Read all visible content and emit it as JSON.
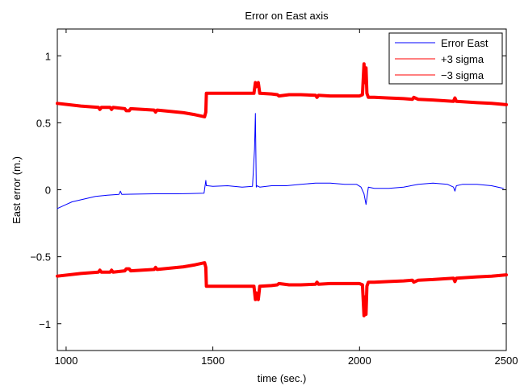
{
  "chart_data": {
    "type": "line",
    "title": "Error on East axis",
    "xlabel": "time (sec.)",
    "ylabel": "East error (m.)",
    "xlim": [
      970,
      2500
    ],
    "ylim": [
      -1.2,
      1.2
    ],
    "xticks": [
      1000,
      1500,
      2000,
      2500
    ],
    "xtick_labels": [
      "1000",
      "1500",
      "2000",
      "2500"
    ],
    "yticks": [
      -1,
      -0.5,
      0,
      0.5,
      1
    ],
    "ytick_labels": [
      "−1",
      "−0.5",
      "0",
      "0.5",
      "1"
    ],
    "grid": false,
    "legend_position": "top-right",
    "series": [
      {
        "name": "Error East",
        "color": "#0000ff",
        "x": [
          970,
          990,
          1020,
          1060,
          1100,
          1140,
          1180,
          1185,
          1190,
          1220,
          1260,
          1300,
          1340,
          1380,
          1420,
          1470,
          1476,
          1478,
          1482,
          1500,
          1550,
          1600,
          1635,
          1642,
          1645,
          1648,
          1650,
          1660,
          1700,
          1750,
          1800,
          1850,
          1900,
          1950,
          1990,
          2005,
          2015,
          2022,
          2030,
          2050,
          2100,
          2150,
          2200,
          2250,
          2300,
          2320,
          2325,
          2330,
          2350,
          2400,
          2450,
          2490
        ],
        "y": [
          -0.14,
          -0.12,
          -0.09,
          -0.07,
          -0.05,
          -0.04,
          -0.035,
          -0.01,
          -0.035,
          -0.033,
          -0.032,
          -0.03,
          -0.03,
          -0.03,
          -0.028,
          -0.025,
          0.07,
          0.03,
          0.03,
          0.025,
          0.03,
          0.02,
          0.025,
          0.3,
          0.57,
          0.02,
          0.03,
          0.02,
          0.03,
          0.03,
          0.04,
          0.05,
          0.05,
          0.04,
          0.04,
          0.02,
          -0.03,
          -0.11,
          0.02,
          0.01,
          0.01,
          0.02,
          0.04,
          0.05,
          0.04,
          0.02,
          -0.01,
          0.03,
          0.04,
          0.04,
          0.03,
          0.01
        ]
      },
      {
        "name": "+3 sigma",
        "color": "#ff0000",
        "x": [
          970,
          1050,
          1110,
          1115,
          1120,
          1150,
          1155,
          1160,
          1200,
          1205,
          1215,
          1220,
          1300,
          1305,
          1310,
          1400,
          1440,
          1472,
          1476,
          1478,
          1520,
          1550,
          1600,
          1640,
          1645,
          1648,
          1655,
          1660,
          1700,
          1720,
          1725,
          1760,
          1800,
          1850,
          1855,
          1860,
          1900,
          1950,
          2000,
          2010,
          2015,
          2018,
          2022,
          2025,
          2030,
          2050,
          2100,
          2150,
          2180,
          2185,
          2200,
          2250,
          2320,
          2325,
          2330,
          2400,
          2450,
          2500
        ],
        "y": [
          0.645,
          0.625,
          0.615,
          0.6,
          0.615,
          0.615,
          0.6,
          0.615,
          0.605,
          0.59,
          0.59,
          0.605,
          0.595,
          0.58,
          0.595,
          0.575,
          0.56,
          0.545,
          0.58,
          0.72,
          0.72,
          0.72,
          0.72,
          0.72,
          0.8,
          0.77,
          0.8,
          0.72,
          0.715,
          0.71,
          0.7,
          0.71,
          0.71,
          0.705,
          0.69,
          0.705,
          0.7,
          0.7,
          0.7,
          0.71,
          0.94,
          0.8,
          0.91,
          0.72,
          0.69,
          0.69,
          0.685,
          0.68,
          0.675,
          0.69,
          0.675,
          0.67,
          0.66,
          0.685,
          0.66,
          0.65,
          0.645,
          0.635
        ]
      },
      {
        "name": "−3 sigma",
        "color": "#ff0000",
        "x": [
          970,
          1050,
          1110,
          1115,
          1120,
          1150,
          1155,
          1160,
          1200,
          1205,
          1215,
          1220,
          1300,
          1305,
          1310,
          1400,
          1440,
          1472,
          1476,
          1478,
          1520,
          1550,
          1600,
          1640,
          1645,
          1648,
          1655,
          1660,
          1700,
          1720,
          1725,
          1760,
          1800,
          1850,
          1855,
          1860,
          1900,
          1950,
          2000,
          2010,
          2015,
          2018,
          2022,
          2025,
          2030,
          2050,
          2100,
          2150,
          2180,
          2185,
          2200,
          2250,
          2320,
          2325,
          2330,
          2400,
          2450,
          2500
        ],
        "y": [
          -0.645,
          -0.625,
          -0.615,
          -0.6,
          -0.615,
          -0.615,
          -0.6,
          -0.615,
          -0.605,
          -0.59,
          -0.59,
          -0.605,
          -0.595,
          -0.58,
          -0.595,
          -0.575,
          -0.56,
          -0.545,
          -0.58,
          -0.72,
          -0.72,
          -0.72,
          -0.72,
          -0.72,
          -0.82,
          -0.77,
          -0.82,
          -0.72,
          -0.715,
          -0.71,
          -0.7,
          -0.71,
          -0.71,
          -0.705,
          -0.69,
          -0.705,
          -0.7,
          -0.7,
          -0.7,
          -0.71,
          -0.94,
          -0.8,
          -0.93,
          -0.72,
          -0.69,
          -0.69,
          -0.685,
          -0.68,
          -0.675,
          -0.69,
          -0.675,
          -0.67,
          -0.66,
          -0.685,
          -0.66,
          -0.65,
          -0.645,
          -0.635
        ]
      }
    ]
  }
}
